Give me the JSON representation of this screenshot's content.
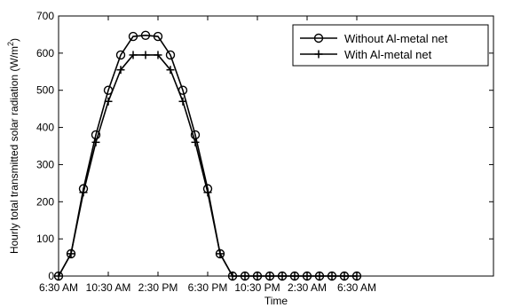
{
  "chart_data": {
    "type": "line",
    "xlabel": "Time",
    "ylabel_main": "Hourly total transmitted solar radiation (W/m",
    "ylabel_sup": "2",
    "ylabel_close": ")",
    "ylim": [
      0,
      700
    ],
    "yticks": [
      0,
      100,
      200,
      300,
      400,
      500,
      600,
      700
    ],
    "xlim": [
      0,
      35
    ],
    "xticks": [
      {
        "hour": 0,
        "label": "6:30 AM"
      },
      {
        "hour": 4,
        "label": "10:30 AM"
      },
      {
        "hour": 8,
        "label": "2:30 PM"
      },
      {
        "hour": 12,
        "label": "6:30 PM"
      },
      {
        "hour": 16,
        "label": "10:30 PM"
      },
      {
        "hour": 20,
        "label": "2:30 AM"
      },
      {
        "hour": 24,
        "label": "6:30 AM"
      }
    ],
    "x": [
      0,
      1,
      2,
      3,
      4,
      5,
      6,
      7,
      8,
      9,
      10,
      11,
      12,
      13,
      14,
      15,
      16,
      17,
      18,
      19,
      20,
      21,
      22,
      23,
      24
    ],
    "series": [
      {
        "name": "Without Al-metal net",
        "marker": "circle",
        "color": "#000000",
        "values": [
          0,
          60,
          235,
          380,
          500,
          595,
          645,
          648,
          645,
          595,
          500,
          380,
          235,
          60,
          0,
          0,
          0,
          0,
          0,
          0,
          0,
          0,
          0,
          0,
          0
        ]
      },
      {
        "name": "With Al-metal net",
        "marker": "plus",
        "color": "#000000",
        "values": [
          0,
          60,
          225,
          360,
          470,
          555,
          595,
          595,
          595,
          555,
          470,
          360,
          225,
          60,
          0,
          0,
          0,
          0,
          0,
          0,
          0,
          0,
          0,
          0,
          0
        ]
      }
    ],
    "legend_position": "top-right",
    "grid": false
  }
}
